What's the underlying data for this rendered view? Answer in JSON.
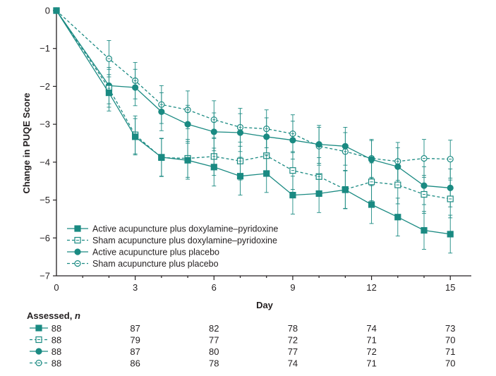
{
  "chart_data": {
    "type": "line",
    "xlabel": "Day",
    "ylabel": "Change in PUQE Score",
    "xlim": [
      0,
      15.8
    ],
    "ylim": [
      -7,
      0
    ],
    "xticks": [
      0,
      3,
      6,
      9,
      12,
      15
    ],
    "yticks": [
      0,
      -1,
      -2,
      -3,
      -4,
      -5,
      -6,
      -7
    ],
    "ytick_labels": [
      "0",
      "−1",
      "−2",
      "−3",
      "−4",
      "−5",
      "−6",
      "−7"
    ],
    "grid": false,
    "legend_position": "bottom-left",
    "series": [
      {
        "name": "Active acupuncture plus doxylamine–pyridoxine",
        "color": "#1a8a82",
        "marker": "square-filled",
        "dashed": false,
        "x": [
          0,
          2,
          3,
          4,
          5,
          6,
          7,
          8,
          9,
          10,
          11,
          12,
          13,
          14,
          15
        ],
        "y": [
          0,
          -2.17,
          -3.33,
          -3.87,
          -3.95,
          -4.13,
          -4.37,
          -4.3,
          -4.87,
          -4.83,
          -4.73,
          -5.12,
          -5.45,
          -5.8,
          -5.9
        ],
        "err": [
          0,
          0.48,
          0.48,
          0.5,
          0.5,
          0.5,
          0.5,
          0.5,
          0.5,
          0.5,
          0.5,
          0.5,
          0.5,
          0.5,
          0.5
        ]
      },
      {
        "name": "Sham acupuncture plus doxylamine–pyridoxine",
        "color": "#1a8a82",
        "marker": "square-open",
        "dashed": true,
        "x": [
          0,
          2,
          3,
          4,
          5,
          6,
          7,
          8,
          9,
          10,
          11,
          12,
          13,
          14,
          15
        ],
        "y": [
          0,
          -2.05,
          -3.28,
          -3.88,
          -3.9,
          -3.85,
          -3.97,
          -3.83,
          -4.22,
          -4.38,
          -4.72,
          -4.52,
          -4.6,
          -4.85,
          -4.97
        ],
        "err": [
          0,
          0.5,
          0.5,
          0.5,
          0.5,
          0.5,
          0.5,
          0.5,
          0.5,
          0.5,
          0.5,
          0.5,
          0.5,
          0.5,
          0.5
        ]
      },
      {
        "name": "Active acupuncture plus placebo",
        "color": "#1a8a82",
        "marker": "circle-filled",
        "dashed": false,
        "x": [
          0,
          2,
          3,
          4,
          5,
          6,
          7,
          8,
          9,
          10,
          11,
          12,
          13,
          14,
          15
        ],
        "y": [
          0,
          -1.98,
          -2.03,
          -2.67,
          -3.0,
          -3.2,
          -3.22,
          -3.33,
          -3.42,
          -3.53,
          -3.58,
          -3.93,
          -4.12,
          -4.62,
          -4.68
        ],
        "err": [
          0,
          0.48,
          0.48,
          0.5,
          0.5,
          0.5,
          0.5,
          0.5,
          0.5,
          0.5,
          0.5,
          0.5,
          0.5,
          0.5,
          0.5
        ]
      },
      {
        "name": "Sham acupuncture plus placebo",
        "color": "#1a8a82",
        "marker": "circle-open",
        "dashed": true,
        "x": [
          0,
          2,
          3,
          4,
          5,
          6,
          7,
          8,
          9,
          10,
          11,
          12,
          13,
          14,
          15
        ],
        "y": [
          0,
          -1.27,
          -1.85,
          -2.48,
          -2.62,
          -2.88,
          -3.08,
          -3.12,
          -3.25,
          -3.58,
          -3.72,
          -3.9,
          -3.98,
          -3.9,
          -3.92
        ],
        "err": [
          0,
          0.48,
          0.48,
          0.5,
          0.5,
          0.5,
          0.5,
          0.5,
          0.5,
          0.5,
          0.5,
          0.5,
          0.5,
          0.5,
          0.5
        ]
      }
    ],
    "assessed": {
      "header_prefix": "Assessed, ",
      "header_n": "n",
      "columns": [
        0,
        3,
        6,
        9,
        12,
        15
      ],
      "rows": [
        [
          "88",
          "87",
          "82",
          "78",
          "74",
          "73"
        ],
        [
          "88",
          "79",
          "77",
          "72",
          "71",
          "70"
        ],
        [
          "88",
          "87",
          "80",
          "77",
          "72",
          "71"
        ],
        [
          "88",
          "86",
          "78",
          "74",
          "71",
          "70"
        ]
      ]
    }
  }
}
